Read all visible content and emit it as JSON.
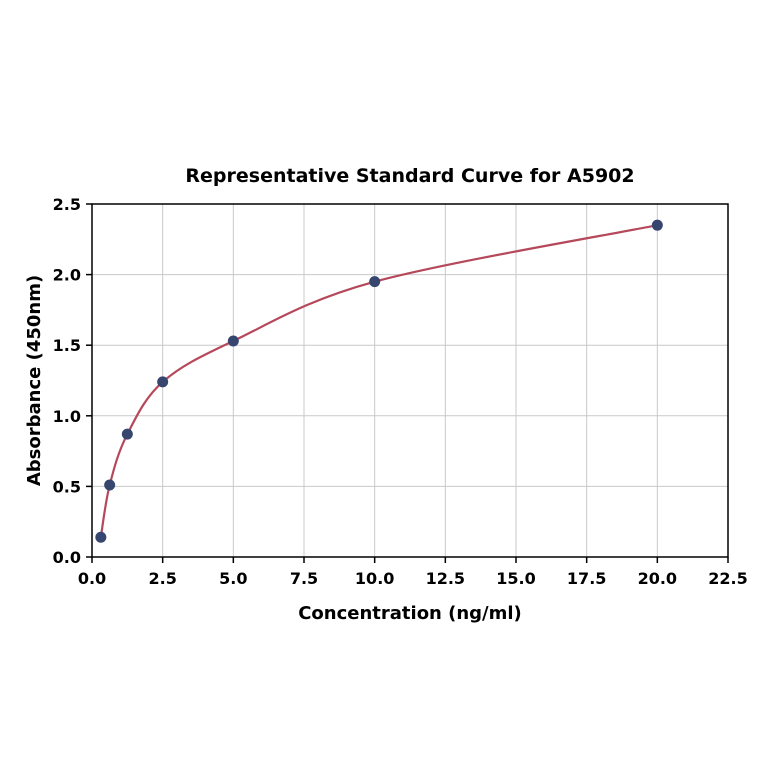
{
  "chart_data": {
    "type": "scatter",
    "title": "Representative Standard Curve for A5902",
    "xlabel": "Concentration (ng/ml)",
    "ylabel": "Absorbance (450nm)",
    "xlim": [
      0,
      22.5
    ],
    "ylim": [
      0,
      2.5
    ],
    "grid": true,
    "x_ticks": [
      {
        "value": 0,
        "label": "0.0"
      },
      {
        "value": 2.5,
        "label": "2.5"
      },
      {
        "value": 5,
        "label": "5.0"
      },
      {
        "value": 7.5,
        "label": "7.5"
      },
      {
        "value": 10,
        "label": "10.0"
      },
      {
        "value": 12.5,
        "label": "12.5"
      },
      {
        "value": 15,
        "label": "15.0"
      },
      {
        "value": 17.5,
        "label": "17.5"
      },
      {
        "value": 20,
        "label": "20.0"
      },
      {
        "value": 22.5,
        "label": "22.5"
      }
    ],
    "y_ticks": [
      {
        "value": 0,
        "label": "0.0"
      },
      {
        "value": 0.5,
        "label": "0.5"
      },
      {
        "value": 1,
        "label": "1.0"
      },
      {
        "value": 1.5,
        "label": "1.5"
      },
      {
        "value": 2,
        "label": "2.0"
      },
      {
        "value": 2.5,
        "label": "2.5"
      }
    ],
    "series": [
      {
        "name": "standards",
        "type": "scatter",
        "x": [
          0.313,
          0.625,
          1.25,
          2.5,
          5,
          10,
          20
        ],
        "y": [
          0.14,
          0.51,
          0.87,
          1.24,
          1.53,
          1.95,
          2.35
        ]
      },
      {
        "name": "fitted-curve",
        "type": "line",
        "x": [
          0.313,
          0.625,
          1.25,
          2.5,
          5,
          10,
          20
        ],
        "y": [
          0.14,
          0.51,
          0.87,
          1.24,
          1.53,
          1.95,
          2.35
        ]
      }
    ],
    "colors": {
      "points": "#36466e",
      "curve": "#b5495b",
      "grid": "#c9c9c9",
      "axis": "#000000",
      "background": "#ffffff"
    }
  }
}
